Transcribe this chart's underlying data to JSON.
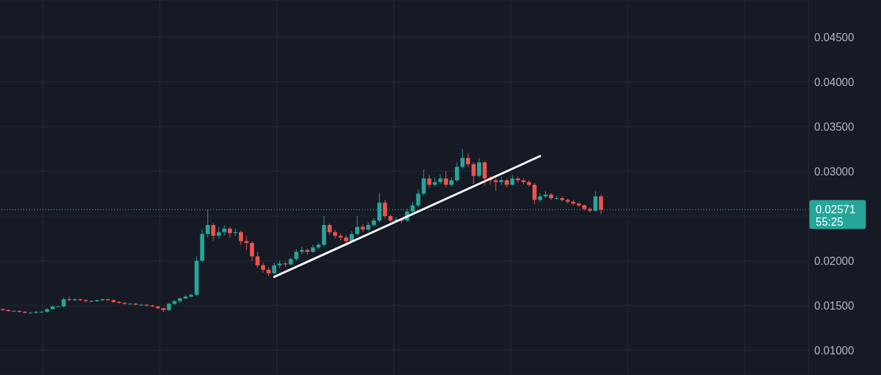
{
  "chart_data": {
    "type": "candlestick",
    "categories": [
      null,
      null,
      null,
      null,
      null,
      null,
      null,
      null,
      null,
      null,
      null,
      null,
      null,
      null,
      null,
      null,
      null,
      null,
      null,
      null,
      null,
      null,
      null,
      null,
      null,
      null,
      null,
      null,
      null,
      null,
      null,
      null,
      null,
      null,
      null,
      null,
      null,
      null,
      null,
      null,
      null,
      null,
      null,
      null,
      null,
      null,
      null,
      null,
      null,
      null,
      null,
      null,
      null,
      null,
      null,
      null,
      null,
      null,
      null,
      null,
      null,
      null,
      null,
      null,
      null,
      null,
      null,
      null,
      null,
      null,
      null,
      null,
      null,
      null,
      null,
      null,
      null,
      null,
      null,
      null,
      null,
      null,
      null,
      null,
      null,
      null,
      null,
      null,
      null,
      null,
      null,
      null,
      null,
      null,
      null,
      null,
      null,
      null,
      null,
      null,
      null,
      null,
      null,
      null,
      null,
      null,
      null,
      null,
      null,
      null,
      null,
      null,
      null,
      null,
      null,
      null,
      null,
      null,
      null,
      null,
      null,
      null,
      null,
      null,
      null,
      null,
      null,
      null,
      null,
      null,
      null,
      null,
      null,
      null,
      null,
      null,
      null,
      null,
      null,
      null,
      null,
      null,
      null,
      null,
      null,
      null
    ],
    "ohlc": [
      [
        0.0146,
        0.0147,
        0.0144,
        0.0145
      ],
      [
        0.0145,
        0.0146,
        0.0143,
        0.0144
      ],
      [
        0.0144,
        0.0145,
        0.0143,
        0.0144
      ],
      [
        0.0144,
        0.0145,
        0.0142,
        0.0143
      ],
      [
        0.0143,
        0.0144,
        0.0141,
        0.0142
      ],
      [
        0.0142,
        0.0143,
        0.0141,
        0.0142
      ],
      [
        0.0142,
        0.0144,
        0.0141,
        0.0143
      ],
      [
        0.0143,
        0.0144,
        0.0142,
        0.0143
      ],
      [
        0.0143,
        0.0147,
        0.0142,
        0.0146
      ],
      [
        0.0146,
        0.015,
        0.0145,
        0.0149
      ],
      [
        0.0149,
        0.015,
        0.0148,
        0.0149
      ],
      [
        0.0149,
        0.0159,
        0.0148,
        0.0157
      ],
      [
        0.0157,
        0.016,
        0.0155,
        0.0156
      ],
      [
        0.0156,
        0.0158,
        0.0155,
        0.0157
      ],
      [
        0.0157,
        0.0158,
        0.0155,
        0.0156
      ],
      [
        0.0156,
        0.0157,
        0.0154,
        0.0155
      ],
      [
        0.0155,
        0.0156,
        0.0154,
        0.0155
      ],
      [
        0.0155,
        0.0157,
        0.0154,
        0.0156
      ],
      [
        0.0156,
        0.0158,
        0.0155,
        0.0157
      ],
      [
        0.0157,
        0.0158,
        0.0155,
        0.0156
      ],
      [
        0.0156,
        0.0157,
        0.0153,
        0.0154
      ],
      [
        0.0154,
        0.0155,
        0.0152,
        0.0153
      ],
      [
        0.0153,
        0.0154,
        0.0151,
        0.0152
      ],
      [
        0.0152,
        0.0153,
        0.0151,
        0.0152
      ],
      [
        0.0152,
        0.0153,
        0.015,
        0.0151
      ],
      [
        0.0151,
        0.0152,
        0.015,
        0.0151
      ],
      [
        0.0151,
        0.0152,
        0.0149,
        0.015
      ],
      [
        0.015,
        0.0151,
        0.0148,
        0.0149
      ],
      [
        0.0149,
        0.015,
        0.0146,
        0.0147
      ],
      [
        0.0147,
        0.0148,
        0.0143,
        0.0145
      ],
      [
        0.0145,
        0.0153,
        0.0144,
        0.0152
      ],
      [
        0.0152,
        0.0156,
        0.0151,
        0.0155
      ],
      [
        0.0155,
        0.0159,
        0.0153,
        0.0158
      ],
      [
        0.0158,
        0.0162,
        0.0157,
        0.016
      ],
      [
        0.016,
        0.0163,
        0.0159,
        0.0162
      ],
      [
        0.0162,
        0.0205,
        0.0161,
        0.02
      ],
      [
        0.02,
        0.0235,
        0.0198,
        0.023
      ],
      [
        0.023,
        0.0257,
        0.0226,
        0.024
      ],
      [
        0.024,
        0.0242,
        0.0222,
        0.0228
      ],
      [
        0.0228,
        0.0238,
        0.0225,
        0.0232
      ],
      [
        0.0232,
        0.024,
        0.0228,
        0.0236
      ],
      [
        0.0236,
        0.0238,
        0.0226,
        0.0231
      ],
      [
        0.0231,
        0.0236,
        0.0228,
        0.0232
      ],
      [
        0.0232,
        0.0234,
        0.0218,
        0.0222
      ],
      [
        0.0222,
        0.0228,
        0.0212,
        0.022
      ],
      [
        0.022,
        0.0222,
        0.02,
        0.0205
      ],
      [
        0.0205,
        0.021,
        0.0192,
        0.0195
      ],
      [
        0.0195,
        0.0198,
        0.0187,
        0.019
      ],
      [
        0.019,
        0.0193,
        0.0183,
        0.0186
      ],
      [
        0.0186,
        0.0198,
        0.0185,
        0.0195
      ],
      [
        0.0195,
        0.02,
        0.0192,
        0.0197
      ],
      [
        0.0197,
        0.0199,
        0.0193,
        0.0196
      ],
      [
        0.0196,
        0.0204,
        0.0195,
        0.0202
      ],
      [
        0.0202,
        0.0213,
        0.02,
        0.021
      ],
      [
        0.021,
        0.0216,
        0.0207,
        0.0212
      ],
      [
        0.0212,
        0.0214,
        0.0207,
        0.021
      ],
      [
        0.021,
        0.0218,
        0.0209,
        0.0215
      ],
      [
        0.0215,
        0.022,
        0.0213,
        0.0218
      ],
      [
        0.0218,
        0.025,
        0.0216,
        0.024
      ],
      [
        0.024,
        0.0242,
        0.0229,
        0.0232
      ],
      [
        0.0232,
        0.0235,
        0.0225,
        0.0228
      ],
      [
        0.0228,
        0.0231,
        0.0223,
        0.0226
      ],
      [
        0.0226,
        0.0229,
        0.022,
        0.0222
      ],
      [
        0.0222,
        0.0233,
        0.0221,
        0.023
      ],
      [
        0.023,
        0.025,
        0.0228,
        0.0238
      ],
      [
        0.0238,
        0.0241,
        0.0232,
        0.0235
      ],
      [
        0.0235,
        0.0243,
        0.0233,
        0.024
      ],
      [
        0.024,
        0.0248,
        0.0238,
        0.0245
      ],
      [
        0.0245,
        0.0276,
        0.0243,
        0.0265
      ],
      [
        0.0265,
        0.0268,
        0.0247,
        0.025
      ],
      [
        0.025,
        0.0252,
        0.0243,
        0.0245
      ],
      [
        0.0245,
        0.0249,
        0.0243,
        0.0246
      ],
      [
        0.0246,
        0.0248,
        0.0242,
        0.0245
      ],
      [
        0.0245,
        0.0258,
        0.0244,
        0.0255
      ],
      [
        0.0255,
        0.0266,
        0.0253,
        0.0262
      ],
      [
        0.0262,
        0.028,
        0.026,
        0.0275
      ],
      [
        0.0275,
        0.0302,
        0.0273,
        0.0292
      ],
      [
        0.0292,
        0.0296,
        0.0282,
        0.0285
      ],
      [
        0.0285,
        0.0293,
        0.0283,
        0.0288
      ],
      [
        0.0288,
        0.0297,
        0.0286,
        0.0292
      ],
      [
        0.0292,
        0.03,
        0.0282,
        0.0285
      ],
      [
        0.0285,
        0.0293,
        0.0283,
        0.029
      ],
      [
        0.029,
        0.031,
        0.0288,
        0.0305
      ],
      [
        0.0305,
        0.0325,
        0.0303,
        0.0315
      ],
      [
        0.0315,
        0.032,
        0.0305,
        0.0308
      ],
      [
        0.0308,
        0.031,
        0.0286,
        0.0295
      ],
      [
        0.0295,
        0.0315,
        0.0293,
        0.031
      ],
      [
        0.031,
        0.0312,
        0.0284,
        0.0292
      ],
      [
        0.0292,
        0.0295,
        0.0285,
        0.029
      ],
      [
        0.029,
        0.0293,
        0.0278,
        0.0288
      ],
      [
        0.0288,
        0.0294,
        0.0285,
        0.029
      ],
      [
        0.029,
        0.0292,
        0.0282,
        0.0285
      ],
      [
        0.0285,
        0.0296,
        0.0284,
        0.0292
      ],
      [
        0.0292,
        0.0294,
        0.0287,
        0.029
      ],
      [
        0.029,
        0.0292,
        0.0285,
        0.0288
      ],
      [
        0.0288,
        0.029,
        0.0283,
        0.0285
      ],
      [
        0.0285,
        0.0287,
        0.0263,
        0.0268
      ],
      [
        0.0268,
        0.0275,
        0.0266,
        0.0272
      ],
      [
        0.0272,
        0.0278,
        0.027,
        0.0274
      ],
      [
        0.0274,
        0.0276,
        0.0268,
        0.027
      ],
      [
        0.027,
        0.0273,
        0.0268,
        0.027
      ],
      [
        0.027,
        0.0272,
        0.0266,
        0.0268
      ],
      [
        0.0268,
        0.027,
        0.0264,
        0.0266
      ],
      [
        0.0266,
        0.0268,
        0.0262,
        0.0264
      ],
      [
        0.0264,
        0.0266,
        0.026,
        0.0262
      ],
      [
        0.0262,
        0.0263,
        0.0256,
        0.0258
      ],
      [
        0.0258,
        0.026,
        0.0254,
        0.0256
      ],
      [
        0.0256,
        0.0278,
        0.0255,
        0.0272
      ],
      [
        0.0272,
        0.0274,
        0.0252,
        0.02571
      ],
      null,
      null,
      null,
      null,
      null,
      null,
      null,
      null,
      null,
      null,
      null,
      null,
      null,
      null,
      null,
      null,
      null,
      null,
      null,
      null,
      null,
      null,
      null,
      null,
      null,
      null,
      null,
      null,
      null,
      null,
      null,
      null,
      null,
      null,
      null,
      null,
      null
    ],
    "colors": [
      "#ef5350",
      "#ef5350",
      "#26a69a",
      "#ef5350",
      "#ef5350",
      "#26a69a",
      "#26a69a",
      "#26a69a",
      "#26a69a",
      "#26a69a",
      "#26a69a",
      "#26a69a",
      "#ef5350",
      "#26a69a",
      "#ef5350",
      "#ef5350",
      "#26a69a",
      "#26a69a",
      "#26a69a",
      "#ef5350",
      "#ef5350",
      "#ef5350",
      "#ef5350",
      "#26a69a",
      "#ef5350",
      "#26a69a",
      "#ef5350",
      "#ef5350",
      "#ef5350",
      "#ef5350",
      "#26a69a",
      "#26a69a",
      "#26a69a",
      "#26a69a",
      "#26a69a",
      "#26a69a",
      "#26a69a",
      "#26a69a",
      "#ef5350",
      "#26a69a",
      "#26a69a",
      "#ef5350",
      "#26a69a",
      "#ef5350",
      "#ef5350",
      "#ef5350",
      "#ef5350",
      "#ef5350",
      "#ef5350",
      "#26a69a",
      "#26a69a",
      "#ef5350",
      "#26a69a",
      "#26a69a",
      "#26a69a",
      "#ef5350",
      "#26a69a",
      "#26a69a",
      "#26a69a",
      "#ef5350",
      "#ef5350",
      "#ef5350",
      "#ef5350",
      "#26a69a",
      "#26a69a",
      "#ef5350",
      "#26a69a",
      "#26a69a",
      "#26a69a",
      "#ef5350",
      "#ef5350",
      "#26a69a",
      "#ef5350",
      "#26a69a",
      "#26a69a",
      "#26a69a",
      "#26a69a",
      "#ef5350",
      "#26a69a",
      "#26a69a",
      "#ef5350",
      "#26a69a",
      "#26a69a",
      "#26a69a",
      "#ef5350",
      "#ef5350",
      "#26a69a",
      "#ef5350",
      "#ef5350",
      "#ef5350",
      "#26a69a",
      "#ef5350",
      "#26a69a",
      "#ef5350",
      "#ef5350",
      "#ef5350",
      "#ef5350",
      "#26a69a",
      "#26a69a",
      "#ef5350",
      "#26a69a",
      "#ef5350",
      "#ef5350",
      "#ef5350",
      "#ef5350",
      "#ef5350",
      "#ef5350",
      "#26a69a",
      "#ef5350",
      null,
      null,
      null,
      null,
      null,
      null,
      null,
      null,
      null,
      null,
      null,
      null,
      null,
      null,
      null,
      null,
      null,
      null,
      null,
      null,
      null,
      null,
      null,
      null,
      null,
      null,
      null,
      null,
      null,
      null,
      null,
      null,
      null,
      null,
      null,
      null,
      null
    ],
    "series": [
      {
        "type": "line",
        "values": [
          null,
          null,
          null,
          null,
          null,
          null,
          null,
          null,
          null,
          null,
          null,
          null,
          null,
          null,
          null,
          null,
          null,
          null,
          null,
          null,
          null,
          null,
          null,
          null,
          null,
          null,
          null,
          null,
          null,
          null,
          null,
          null,
          null,
          null,
          null,
          null,
          null,
          null,
          null,
          null,
          null,
          null,
          null,
          null,
          null,
          null,
          null,
          null,
          null,
          0.0182,
          null,
          null,
          null,
          null,
          null,
          null,
          null,
          null,
          null,
          null,
          null,
          null,
          null,
          null,
          null,
          null,
          null,
          null,
          null,
          null,
          null,
          null,
          null,
          null,
          null,
          null,
          null,
          null,
          null,
          null,
          null,
          null,
          null,
          null,
          null,
          null,
          null,
          null,
          null,
          null,
          null,
          null,
          null,
          null,
          null,
          null,
          null,
          0.0317,
          null,
          null,
          null,
          null,
          null,
          null,
          null,
          null,
          null,
          null,
          null,
          null,
          null,
          null,
          null,
          null,
          null,
          null,
          null,
          null,
          null,
          null,
          null,
          null,
          null,
          null,
          null,
          null,
          null,
          null,
          null,
          null,
          null,
          null,
          null,
          null,
          null,
          null,
          null,
          null,
          null,
          null,
          null,
          null,
          null,
          null,
          null,
          null
        ],
        "color": "#ffffff"
      }
    ],
    "ylim": [
      0.00724,
      0.04915
    ],
    "yticks": [
      {
        "value": 0.01,
        "label": "0.01000"
      },
      {
        "value": 0.015,
        "label": "0.01500"
      },
      {
        "value": 0.02,
        "label": "0.02000"
      },
      {
        "value": 0.025,
        "label": null
      },
      {
        "value": 0.03,
        "label": "0.03000"
      },
      {
        "value": 0.035,
        "label": "0.03500"
      },
      {
        "value": 0.04,
        "label": "0.04000"
      },
      {
        "value": 0.045,
        "label": "0.04500"
      }
    ],
    "ref_lines": [
      {
        "axis": "y",
        "value": 0.02571,
        "label": "0.02571",
        "color": "#26a69a",
        "line_style": "dotted"
      }
    ],
    "annotations": [
      "55:25"
    ],
    "grid": true,
    "tick_labels": "y"
  }
}
